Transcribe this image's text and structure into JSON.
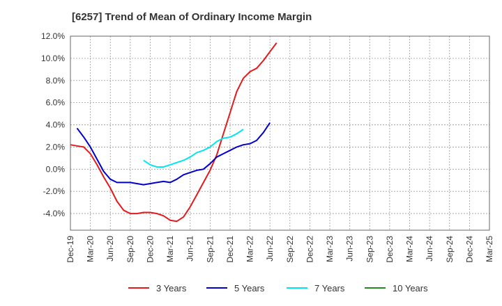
{
  "title": "[6257]  Trend of Mean of Ordinary Income Margin",
  "chart_data": {
    "type": "line",
    "title": "[6257]  Trend of Mean of Ordinary Income Margin",
    "xlabel": "",
    "ylabel": "",
    "ylim": [
      -5.5,
      12.0
    ],
    "y_ticks": [
      12.0,
      10.0,
      8.0,
      6.0,
      4.0,
      2.0,
      0.0,
      -2.0,
      -4.0
    ],
    "y_tick_labels": [
      "12.0%",
      "10.0%",
      "8.0%",
      "6.0%",
      "4.0%",
      "2.0%",
      "0.0%",
      "-2.0%",
      "-4.0%"
    ],
    "x_tick_labels": [
      "Dec-19",
      "Mar-20",
      "Jun-20",
      "Sep-20",
      "Dec-20",
      "Mar-21",
      "Jun-21",
      "Sep-21",
      "Dec-21",
      "Mar-22",
      "Jun-22",
      "Sep-22",
      "Dec-22",
      "Mar-23",
      "Jun-23",
      "Sep-23",
      "Dec-23",
      "Mar-24",
      "Jun-24",
      "Sep-24",
      "Dec-24",
      "Mar-25"
    ],
    "grid": true,
    "legend_position": "bottom",
    "series": [
      {
        "name": "3 Years",
        "color": "#e31a1c",
        "values": [
          2.2,
          2.1,
          2.0,
          1.4,
          0.4,
          -0.7,
          -1.7,
          -2.9,
          -3.7,
          -4.0,
          -4.0,
          -3.9,
          -3.9,
          -4.0,
          -4.2,
          -4.6,
          -4.7,
          -4.3,
          -3.4,
          -2.3,
          -1.2,
          -0.1,
          1.3,
          3.2,
          5.1,
          7.0,
          8.2,
          8.8,
          9.1,
          9.8,
          10.6,
          11.4
        ]
      },
      {
        "name": "5 Years",
        "color": "#0000cc",
        "values": [
          null,
          3.7,
          2.9,
          2.0,
          0.9,
          -0.2,
          -0.9,
          -1.2,
          -1.2,
          -1.2,
          -1.3,
          -1.4,
          -1.3,
          -1.2,
          -1.1,
          -1.2,
          -0.9,
          -0.5,
          -0.3,
          -0.1,
          0.0,
          0.5,
          1.1,
          1.4,
          1.7,
          2.0,
          2.2,
          2.3,
          2.6,
          3.3,
          4.2
        ]
      },
      {
        "name": "7 Years",
        "color": "#00e5ee",
        "values": [
          null,
          null,
          null,
          null,
          null,
          null,
          null,
          null,
          null,
          null,
          null,
          0.8,
          0.4,
          0.2,
          0.2,
          0.4,
          0.6,
          0.8,
          1.1,
          1.5,
          1.7,
          2.0,
          2.5,
          2.8,
          2.9,
          3.2,
          3.6
        ]
      },
      {
        "name": "10 Years",
        "color": "#228b22",
        "values": []
      }
    ]
  }
}
